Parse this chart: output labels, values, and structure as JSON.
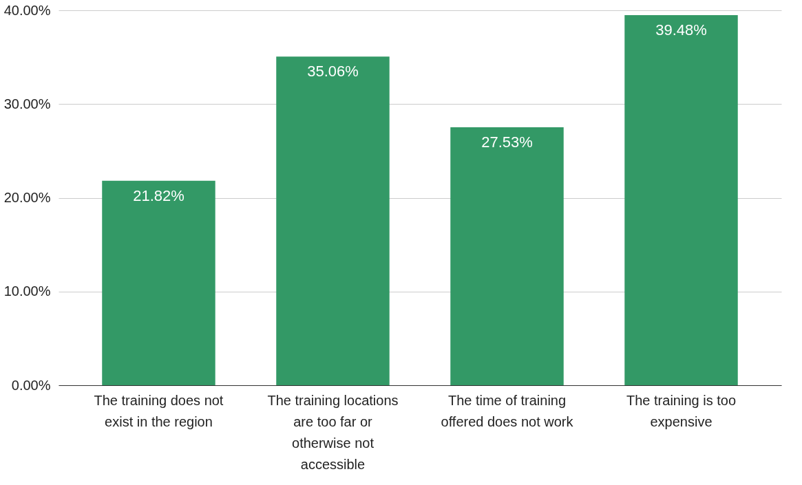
{
  "chart_data": {
    "type": "bar",
    "categories": [
      "The training does not exist in the region",
      "The training locations are too far or otherwise not accessible",
      "The time of training offered does not work",
      "The training is too expensive"
    ],
    "values": [
      21.82,
      35.06,
      27.53,
      39.48
    ],
    "value_labels": [
      "21.82%",
      "35.06%",
      "27.53%",
      "39.48%"
    ],
    "color": "#339966",
    "ylim": [
      0,
      40
    ],
    "yticks": [
      {
        "value": 0,
        "label": "0.00%"
      },
      {
        "value": 10,
        "label": "10.00%"
      },
      {
        "value": 20,
        "label": "20.00%"
      },
      {
        "value": 30,
        "label": "30.00%"
      },
      {
        "value": 40,
        "label": "40.00%"
      }
    ],
    "grid": "y"
  }
}
